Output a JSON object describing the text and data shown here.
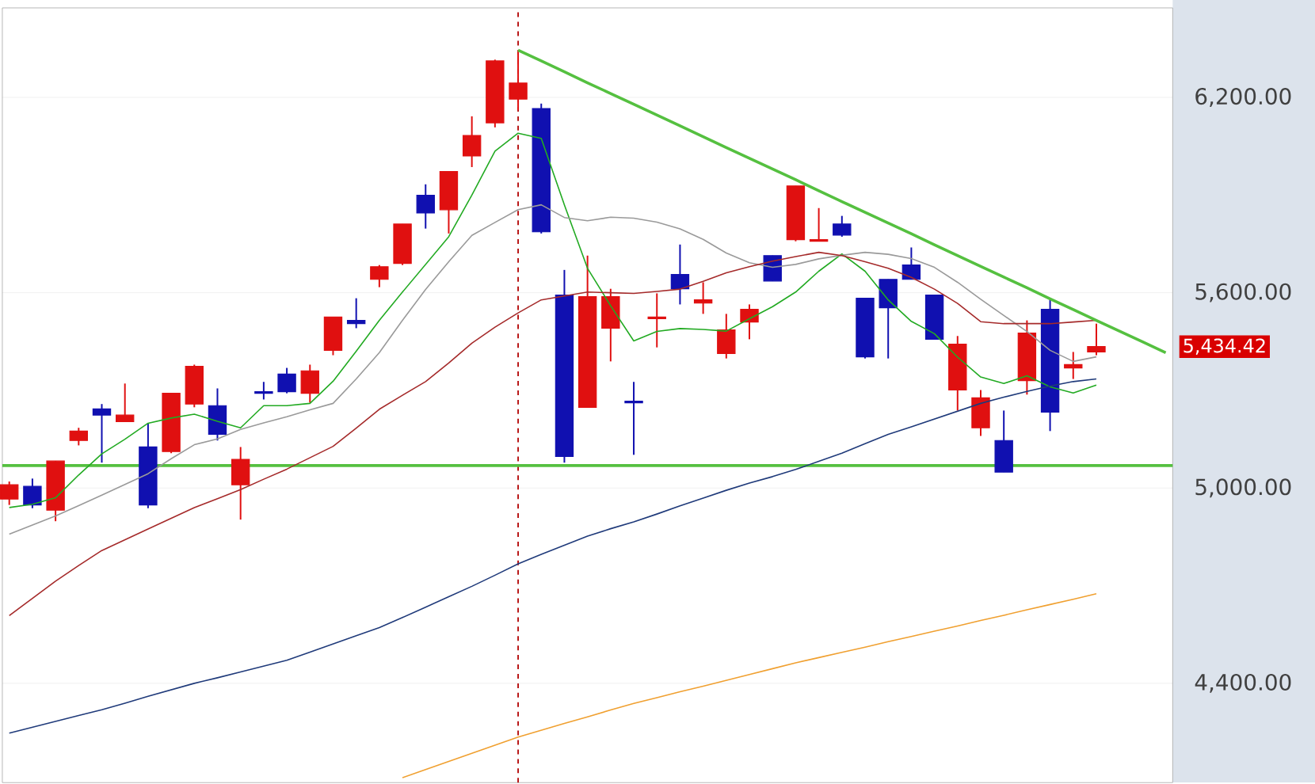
{
  "chart_data": {
    "type": "candlestick",
    "categories": [
      null,
      null,
      null,
      null,
      null,
      null,
      null,
      null,
      null,
      null,
      null,
      null,
      null,
      null,
      null,
      null,
      null,
      null,
      null,
      null,
      null,
      null,
      null,
      null,
      null,
      null,
      null,
      null,
      null,
      null,
      null,
      null,
      null,
      null,
      null,
      null,
      null,
      null,
      null,
      null,
      null,
      null,
      null,
      null,
      null,
      null,
      null,
      null,
      null,
      null,
      null
    ],
    "ohlc": [
      [
        4966,
        5020,
        4948,
        5010
      ],
      [
        5005,
        5029,
        4938,
        4948
      ],
      [
        4932,
        5083,
        4898,
        5083
      ],
      [
        5146,
        5185,
        5131,
        5175
      ],
      [
        5243,
        5258,
        5078,
        5224
      ],
      [
        5204,
        5321,
        5204,
        5224
      ],
      [
        5126,
        5199,
        4938,
        4948
      ],
      [
        5112,
        5291,
        5107,
        5291
      ],
      [
        5258,
        5379,
        5248,
        5374
      ],
      [
        5253,
        5306,
        5146,
        5165
      ],
      [
        5010,
        5126,
        4903,
        5088
      ],
      [
        5296,
        5326,
        5272,
        5291
      ],
      [
        5350,
        5369,
        5291,
        5296
      ],
      [
        5291,
        5379,
        5262,
        5360
      ],
      [
        5423,
        5525,
        5408,
        5525
      ],
      [
        5515,
        5583,
        5491,
        5505
      ],
      [
        5641,
        5685,
        5617,
        5680
      ],
      [
        5690,
        5811,
        5685,
        5811
      ],
      [
        5899,
        5933,
        5797,
        5845
      ],
      [
        5855,
        5972,
        5782,
        5972
      ],
      [
        6020,
        6142,
        5986,
        6083
      ],
      [
        6122,
        6316,
        6108,
        6312
      ],
      [
        6195,
        6345,
        6161,
        6244
      ],
      [
        6166,
        6181,
        5782,
        5787
      ],
      [
        5593,
        5670,
        5078,
        5097
      ],
      [
        5248,
        5714,
        5248,
        5588
      ],
      [
        5491,
        5612,
        5389,
        5588
      ],
      [
        5267,
        5326,
        5102,
        5262
      ],
      [
        5520,
        5598,
        5432,
        5525
      ],
      [
        5656,
        5748,
        5564,
        5612
      ],
      [
        5568,
        5632,
        5535,
        5578
      ],
      [
        5413,
        5535,
        5398,
        5486
      ],
      [
        5510,
        5564,
        5457,
        5549
      ],
      [
        5714,
        5714,
        5636,
        5636
      ],
      [
        5763,
        5928,
        5758,
        5928
      ],
      [
        5758,
        5860,
        5758,
        5763
      ],
      [
        5811,
        5836,
        5772,
        5777
      ],
      [
        5583,
        5583,
        5398,
        5403
      ],
      [
        5641,
        5641,
        5398,
        5554
      ],
      [
        5685,
        5739,
        5641,
        5641
      ],
      [
        5593,
        5593,
        5457,
        5457
      ],
      [
        5301,
        5467,
        5238,
        5442
      ],
      [
        5185,
        5301,
        5160,
        5277
      ],
      [
        5146,
        5238,
        5049,
        5049
      ],
      [
        5330,
        5515,
        5287,
        5476
      ],
      [
        5549,
        5578,
        5175,
        5233
      ],
      [
        5369,
        5418,
        5335,
        5379
      ],
      [
        5418,
        5505,
        5408,
        5434.42
      ],
      null,
      null,
      null
    ],
    "colors": [
      "#e01010",
      "#1010b0",
      "#e01010",
      "#e01010",
      "#1010b0",
      "#e01010",
      "#1010b0",
      "#e01010",
      "#e01010",
      "#1010b0",
      "#e01010",
      "#1010b0",
      "#1010b0",
      "#e01010",
      "#e01010",
      "#1010b0",
      "#e01010",
      "#e01010",
      "#1010b0",
      "#e01010",
      "#e01010",
      "#e01010",
      "#e01010",
      "#1010b0",
      "#1010b0",
      "#e01010",
      "#e01010",
      "#1010b0",
      "#e01010",
      "#1010b0",
      "#e01010",
      "#e01010",
      "#e01010",
      "#1010b0",
      "#e01010",
      "#e01010",
      "#1010b0",
      "#1010b0",
      "#1010b0",
      "#1010b0",
      "#1010b0",
      "#e01010",
      "#e01010",
      "#1010b0",
      "#e01010",
      "#1010b0",
      "#e01010",
      "#e01010",
      null,
      null,
      null
    ],
    "series": [
      {
        "type": "line",
        "color": "#22aa22",
        "values": [
          4940,
          4950,
          4970,
          5040,
          5105,
          5150,
          5199,
          5215,
          5227,
          5205,
          5185,
          5253,
          5253,
          5260,
          5328,
          5420,
          5515,
          5602,
          5687,
          5772,
          5900,
          6035,
          6090,
          6074,
          5870,
          5675,
          5560,
          5452,
          5481,
          5490,
          5487,
          5482,
          5520,
          5557,
          5602,
          5666,
          5719,
          5666,
          5578,
          5512,
          5474,
          5402,
          5341,
          5321,
          5345,
          5311,
          5292,
          5316,
          null,
          null,
          null
        ]
      },
      {
        "type": "line",
        "color": "#9a9a9a",
        "values": [
          4858,
          4886,
          4914,
          4946,
          4978,
          5011,
          5044,
          5090,
          5133,
          5151,
          5180,
          5200,
          5219,
          5240,
          5260,
          5335,
          5416,
          5515,
          5610,
          5695,
          5776,
          5816,
          5855,
          5870,
          5831,
          5821,
          5832,
          5829,
          5817,
          5796,
          5764,
          5722,
          5692,
          5678,
          5687,
          5704,
          5715,
          5724,
          5718,
          5705,
          5678,
          5632,
          5580,
          5530,
          5481,
          5423,
          5389,
          5403,
          null,
          null,
          null
        ]
      },
      {
        "type": "line",
        "color": "#a52a2a",
        "values": [
          4608,
          4661,
          4714,
          4762,
          4808,
          4841,
          4874,
          4907,
          4940,
          4967,
          4995,
          5027,
          5058,
          5093,
          5128,
          5184,
          5242,
          5285,
          5327,
          5384,
          5445,
          5494,
          5538,
          5578,
          5590,
          5602,
          5600,
          5598,
          5604,
          5611,
          5635,
          5661,
          5680,
          5697,
          5711,
          5724,
          5714,
          5695,
          5675,
          5647,
          5611,
          5567,
          5511,
          5505,
          5505,
          5505,
          5510,
          5515,
          null,
          null,
          null
        ]
      },
      {
        "type": "line",
        "color": "#1f3a7a",
        "values": [
          4247,
          4265,
          4283,
          4301,
          4319,
          4339,
          4360,
          4380,
          4400,
          4417,
          4435,
          4453,
          4471,
          4496,
          4521,
          4546,
          4571,
          4602,
          4634,
          4666,
          4698,
          4732,
          4767,
          4796,
          4824,
          4852,
          4875,
          4896,
          4920,
          4945,
          4969,
          4993,
          5015,
          5035,
          5057,
          5082,
          5107,
          5136,
          5165,
          5188,
          5212,
          5236,
          5260,
          5279,
          5297,
          5313,
          5327,
          5335,
          null,
          null,
          null
        ]
      },
      {
        "type": "line",
        "color": "#f0a030",
        "values": [
          null,
          null,
          null,
          null,
          null,
          null,
          null,
          null,
          null,
          null,
          null,
          null,
          null,
          null,
          null,
          null,
          null,
          4110,
          4135,
          4160,
          4185,
          4210,
          4235,
          4256,
          4277,
          4297,
          4318,
          4338,
          4356,
          4374,
          4391,
          4409,
          4427,
          4445,
          4463,
          4479,
          4495,
          4511,
          4528,
          4544,
          4560,
          4576,
          4593,
          4609,
          4626,
          4642,
          4658,
          4675,
          null,
          null,
          null
        ]
      },
      {
        "type": "line",
        "color": "#55c040",
        "values": [
          null,
          null,
          null,
          null,
          null,
          null,
          null,
          null,
          null,
          null,
          null,
          null,
          null,
          null,
          null,
          null,
          null,
          null,
          null,
          null,
          null,
          null,
          6345,
          6312,
          6279,
          6245,
          6212,
          6179,
          6146,
          6113,
          6079,
          6046,
          6013,
          5980,
          5947,
          5913,
          5880,
          5847,
          5814,
          5781,
          5747,
          5714,
          5681,
          5648,
          5615,
          5581,
          5548,
          5515,
          5482,
          5449,
          5416
        ]
      }
    ],
    "ref_lines": [
      {
        "axis": "y",
        "value": 5069,
        "color": "#55c040",
        "line_style": "solid"
      }
    ],
    "annotations": [
      "5,434.42"
    ],
    "ylim": [
      4095,
      6475
    ],
    "yticks": [
      {
        "value": 4400,
        "label": "4,400.00"
      },
      {
        "value": 5000,
        "label": "5,000.00"
      },
      {
        "value": 5600,
        "label": "5,600.00"
      },
      {
        "value": 6200,
        "label": "6,200.00"
      }
    ],
    "grid": "y",
    "tick_labels": "y"
  }
}
